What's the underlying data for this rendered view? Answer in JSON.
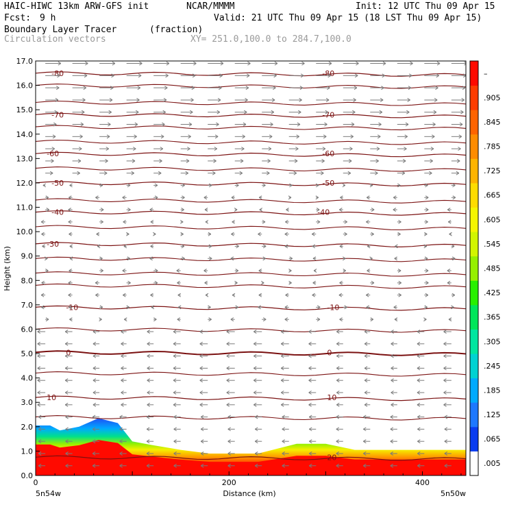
{
  "header": {
    "model": "HAIC-HIWC 13km ARW-GFS init",
    "org": "NCAR/MMMM",
    "init": "Init: 12 UTC Thu 09 Apr 15",
    "fcst_label": "Fcst:",
    "fcst_value": "9 h",
    "valid": "Valid: 21 UTC Thu 09 Apr 15 (18 LST Thu 09 Apr 15)",
    "field": "Boundary Layer Tracer",
    "units": "(fraction)",
    "vectors": "Circulation vectors",
    "xy": "XY= 251.0,100.0 to 284.7,100.0"
  },
  "chart_data": {
    "type": "heatmap",
    "xlabel": "Distance (km)",
    "ylabel": "Height (km)",
    "xlim": [
      0,
      445
    ],
    "ylim": [
      0,
      17
    ],
    "x_ticks": [
      {
        "value": 0,
        "label": "0"
      },
      {
        "value": 200,
        "label": "200"
      },
      {
        "value": 400,
        "label": "400"
      }
    ],
    "x_end_labels": {
      "left": "5n54w",
      "right": "5n50w"
    },
    "y_ticks": [
      "0.0",
      "1.0",
      "2.0",
      "3.0",
      "4.0",
      "5.0",
      "6.0",
      "7.0",
      "8.0",
      "9.0",
      "10.0",
      "11.0",
      "12.0",
      "13.0",
      "14.0",
      "15.0",
      "16.0",
      "17.0"
    ],
    "colorbar": {
      "labels": [
        ".005",
        ".065",
        ".125",
        ".185",
        ".245",
        ".305",
        ".365",
        ".425",
        ".485",
        ".545",
        ".605",
        ".665",
        ".725",
        ".785",
        ".845",
        ".905",
        "–"
      ],
      "colors": [
        "#ffffff",
        "#0a3cf0",
        "#1e78ff",
        "#00aaff",
        "#00d2d2",
        "#00e6a0",
        "#00e65a",
        "#28f000",
        "#96f000",
        "#d2f500",
        "#f5f500",
        "#ffdc00",
        "#ffb400",
        "#ff8c00",
        "#ff6400",
        "#ff3c00",
        "#ff0a00"
      ]
    },
    "tracer_top_km": [
      {
        "x": 0,
        "y": 2.05
      },
      {
        "x": 15,
        "y": 2.05
      },
      {
        "x": 25,
        "y": 1.85
      },
      {
        "x": 45,
        "y": 2.0
      },
      {
        "x": 65,
        "y": 2.35
      },
      {
        "x": 85,
        "y": 2.15
      },
      {
        "x": 100,
        "y": 1.4
      },
      {
        "x": 120,
        "y": 1.25
      },
      {
        "x": 150,
        "y": 1.05
      },
      {
        "x": 180,
        "y": 0.9
      },
      {
        "x": 230,
        "y": 0.9
      },
      {
        "x": 250,
        "y": 1.1
      },
      {
        "x": 270,
        "y": 1.3
      },
      {
        "x": 300,
        "y": 1.3
      },
      {
        "x": 330,
        "y": 1.05
      },
      {
        "x": 445,
        "y": 1.05
      }
    ],
    "temperature_contours": [
      {
        "label": "-80",
        "y": 16.5,
        "label_positions": [
          15,
          295
        ]
      },
      {
        "label": "-70",
        "y": 14.8,
        "label_positions": [
          15,
          295
        ]
      },
      {
        "label": "-60",
        "y": 13.2,
        "label_positions": [
          10,
          295
        ]
      },
      {
        "label": "-50",
        "y": 12.0,
        "label_positions": [
          15,
          295
        ]
      },
      {
        "label": "-40",
        "y": 10.8,
        "label_positions": [
          15,
          290
        ]
      },
      {
        "label": "-30",
        "y": 9.5,
        "label_positions": [
          10,
          null
        ]
      },
      {
        "label": "-10",
        "y": 6.9,
        "label_positions": [
          30,
          300
        ]
      },
      {
        "label": "0",
        "y": 5.05,
        "label_positions": [
          30,
          300
        ]
      },
      {
        "label": "10",
        "y": 3.2,
        "label_positions": [
          10,
          300
        ]
      },
      {
        "label": "20",
        "y": 0.75,
        "label_positions": [
          null,
          300
        ]
      }
    ],
    "extra_isotherm_heights_km": [
      16.0,
      15.3,
      14.3,
      13.7,
      12.6,
      11.3,
      10.2,
      8.9,
      8.3,
      7.8,
      6.0,
      4.2,
      2.4
    ]
  }
}
